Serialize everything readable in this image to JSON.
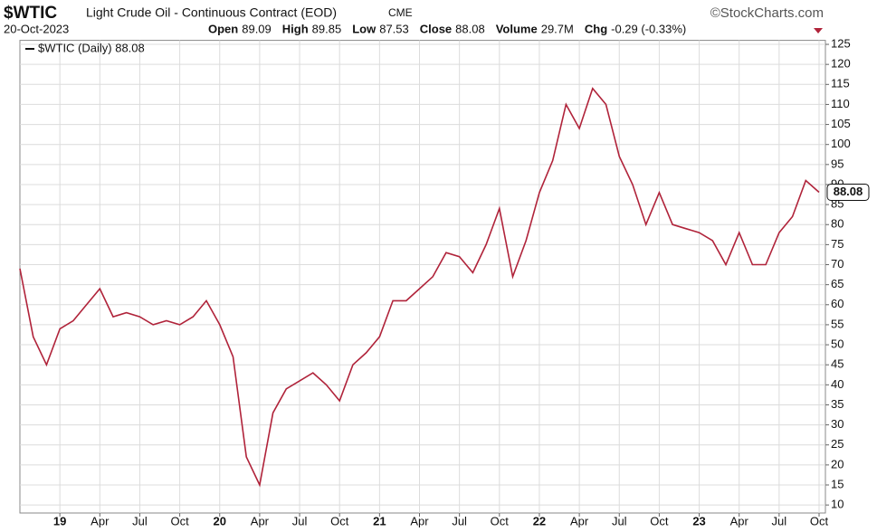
{
  "header": {
    "symbol": "$WTIC",
    "name": "Light Crude Oil - Continuous Contract (EOD)",
    "exchange": "CME",
    "source": "©StockCharts.com",
    "date": "20-Oct-2023",
    "stats": [
      {
        "label": "Open",
        "value": 89.09
      },
      {
        "label": "High",
        "value": 89.85
      },
      {
        "label": "Low",
        "value": 87.53
      },
      {
        "label": "Close",
        "value": 88.08
      },
      {
        "label": "Volume",
        "value": "29.7M"
      },
      {
        "label": "Chg",
        "value": "-0.29 (-0.33%)"
      }
    ]
  },
  "chart_data": {
    "type": "line",
    "x": [
      "2018-10",
      "2018-11",
      "2018-12",
      "2019-01",
      "2019-02",
      "2019-03",
      "2019-04",
      "2019-05",
      "2019-06",
      "2019-07",
      "2019-08",
      "2019-09",
      "2019-10",
      "2019-11",
      "2019-12",
      "2020-01",
      "2020-02",
      "2020-03",
      "2020-04",
      "2020-05",
      "2020-06",
      "2020-07",
      "2020-08",
      "2020-09",
      "2020-10",
      "2020-11",
      "2020-12",
      "2021-01",
      "2021-02",
      "2021-03",
      "2021-04",
      "2021-05",
      "2021-06",
      "2021-07",
      "2021-08",
      "2021-09",
      "2021-10",
      "2021-11",
      "2021-12",
      "2022-01",
      "2022-02",
      "2022-03",
      "2022-04",
      "2022-05",
      "2022-06",
      "2022-07",
      "2022-08",
      "2022-09",
      "2022-10",
      "2022-11",
      "2022-12",
      "2023-01",
      "2023-02",
      "2023-03",
      "2023-04",
      "2023-05",
      "2023-06",
      "2023-07",
      "2023-08",
      "2023-09",
      "2023-10"
    ],
    "series": [
      {
        "name": "$WTIC (Daily) 88.08",
        "color": "#b0233a",
        "values": [
          69,
          52,
          45,
          54,
          56,
          60,
          64,
          57,
          58,
          57,
          55,
          56,
          55,
          57,
          61,
          55,
          47,
          22,
          15,
          33,
          39,
          41,
          43,
          40,
          36,
          45,
          48,
          52,
          61,
          61,
          64,
          67,
          73,
          72,
          68,
          75,
          84,
          67,
          76,
          88,
          96,
          110,
          104,
          114,
          110,
          97,
          90,
          80,
          88,
          80,
          79,
          78,
          76,
          70,
          78,
          70,
          70,
          78,
          82,
          91,
          88.08
        ]
      }
    ],
    "xticks": [
      {
        "value": "2019-01",
        "label": "19"
      },
      {
        "value": "2019-04",
        "label": "Apr"
      },
      {
        "value": "2019-07",
        "label": "Jul"
      },
      {
        "value": "2019-10",
        "label": "Oct"
      },
      {
        "value": "2020-01",
        "label": "20"
      },
      {
        "value": "2020-04",
        "label": "Apr"
      },
      {
        "value": "2020-07",
        "label": "Jul"
      },
      {
        "value": "2020-10",
        "label": "Oct"
      },
      {
        "value": "2021-01",
        "label": "21"
      },
      {
        "value": "2021-04",
        "label": "Apr"
      },
      {
        "value": "2021-07",
        "label": "Jul"
      },
      {
        "value": "2021-10",
        "label": "Oct"
      },
      {
        "value": "2022-01",
        "label": "22"
      },
      {
        "value": "2022-04",
        "label": "Apr"
      },
      {
        "value": "2022-07",
        "label": "Jul"
      },
      {
        "value": "2022-10",
        "label": "Oct"
      },
      {
        "value": "2023-01",
        "label": "23"
      },
      {
        "value": "2023-04",
        "label": "Apr"
      },
      {
        "value": "2023-07",
        "label": "Jul"
      },
      {
        "value": "2023-10",
        "label": "Oct"
      }
    ],
    "ylim": [
      8,
      126
    ],
    "yticks": [
      10,
      15,
      20,
      25,
      30,
      35,
      40,
      45,
      50,
      55,
      60,
      65,
      70,
      75,
      80,
      85,
      90,
      95,
      100,
      105,
      110,
      115,
      120,
      125
    ],
    "grid": true
  }
}
